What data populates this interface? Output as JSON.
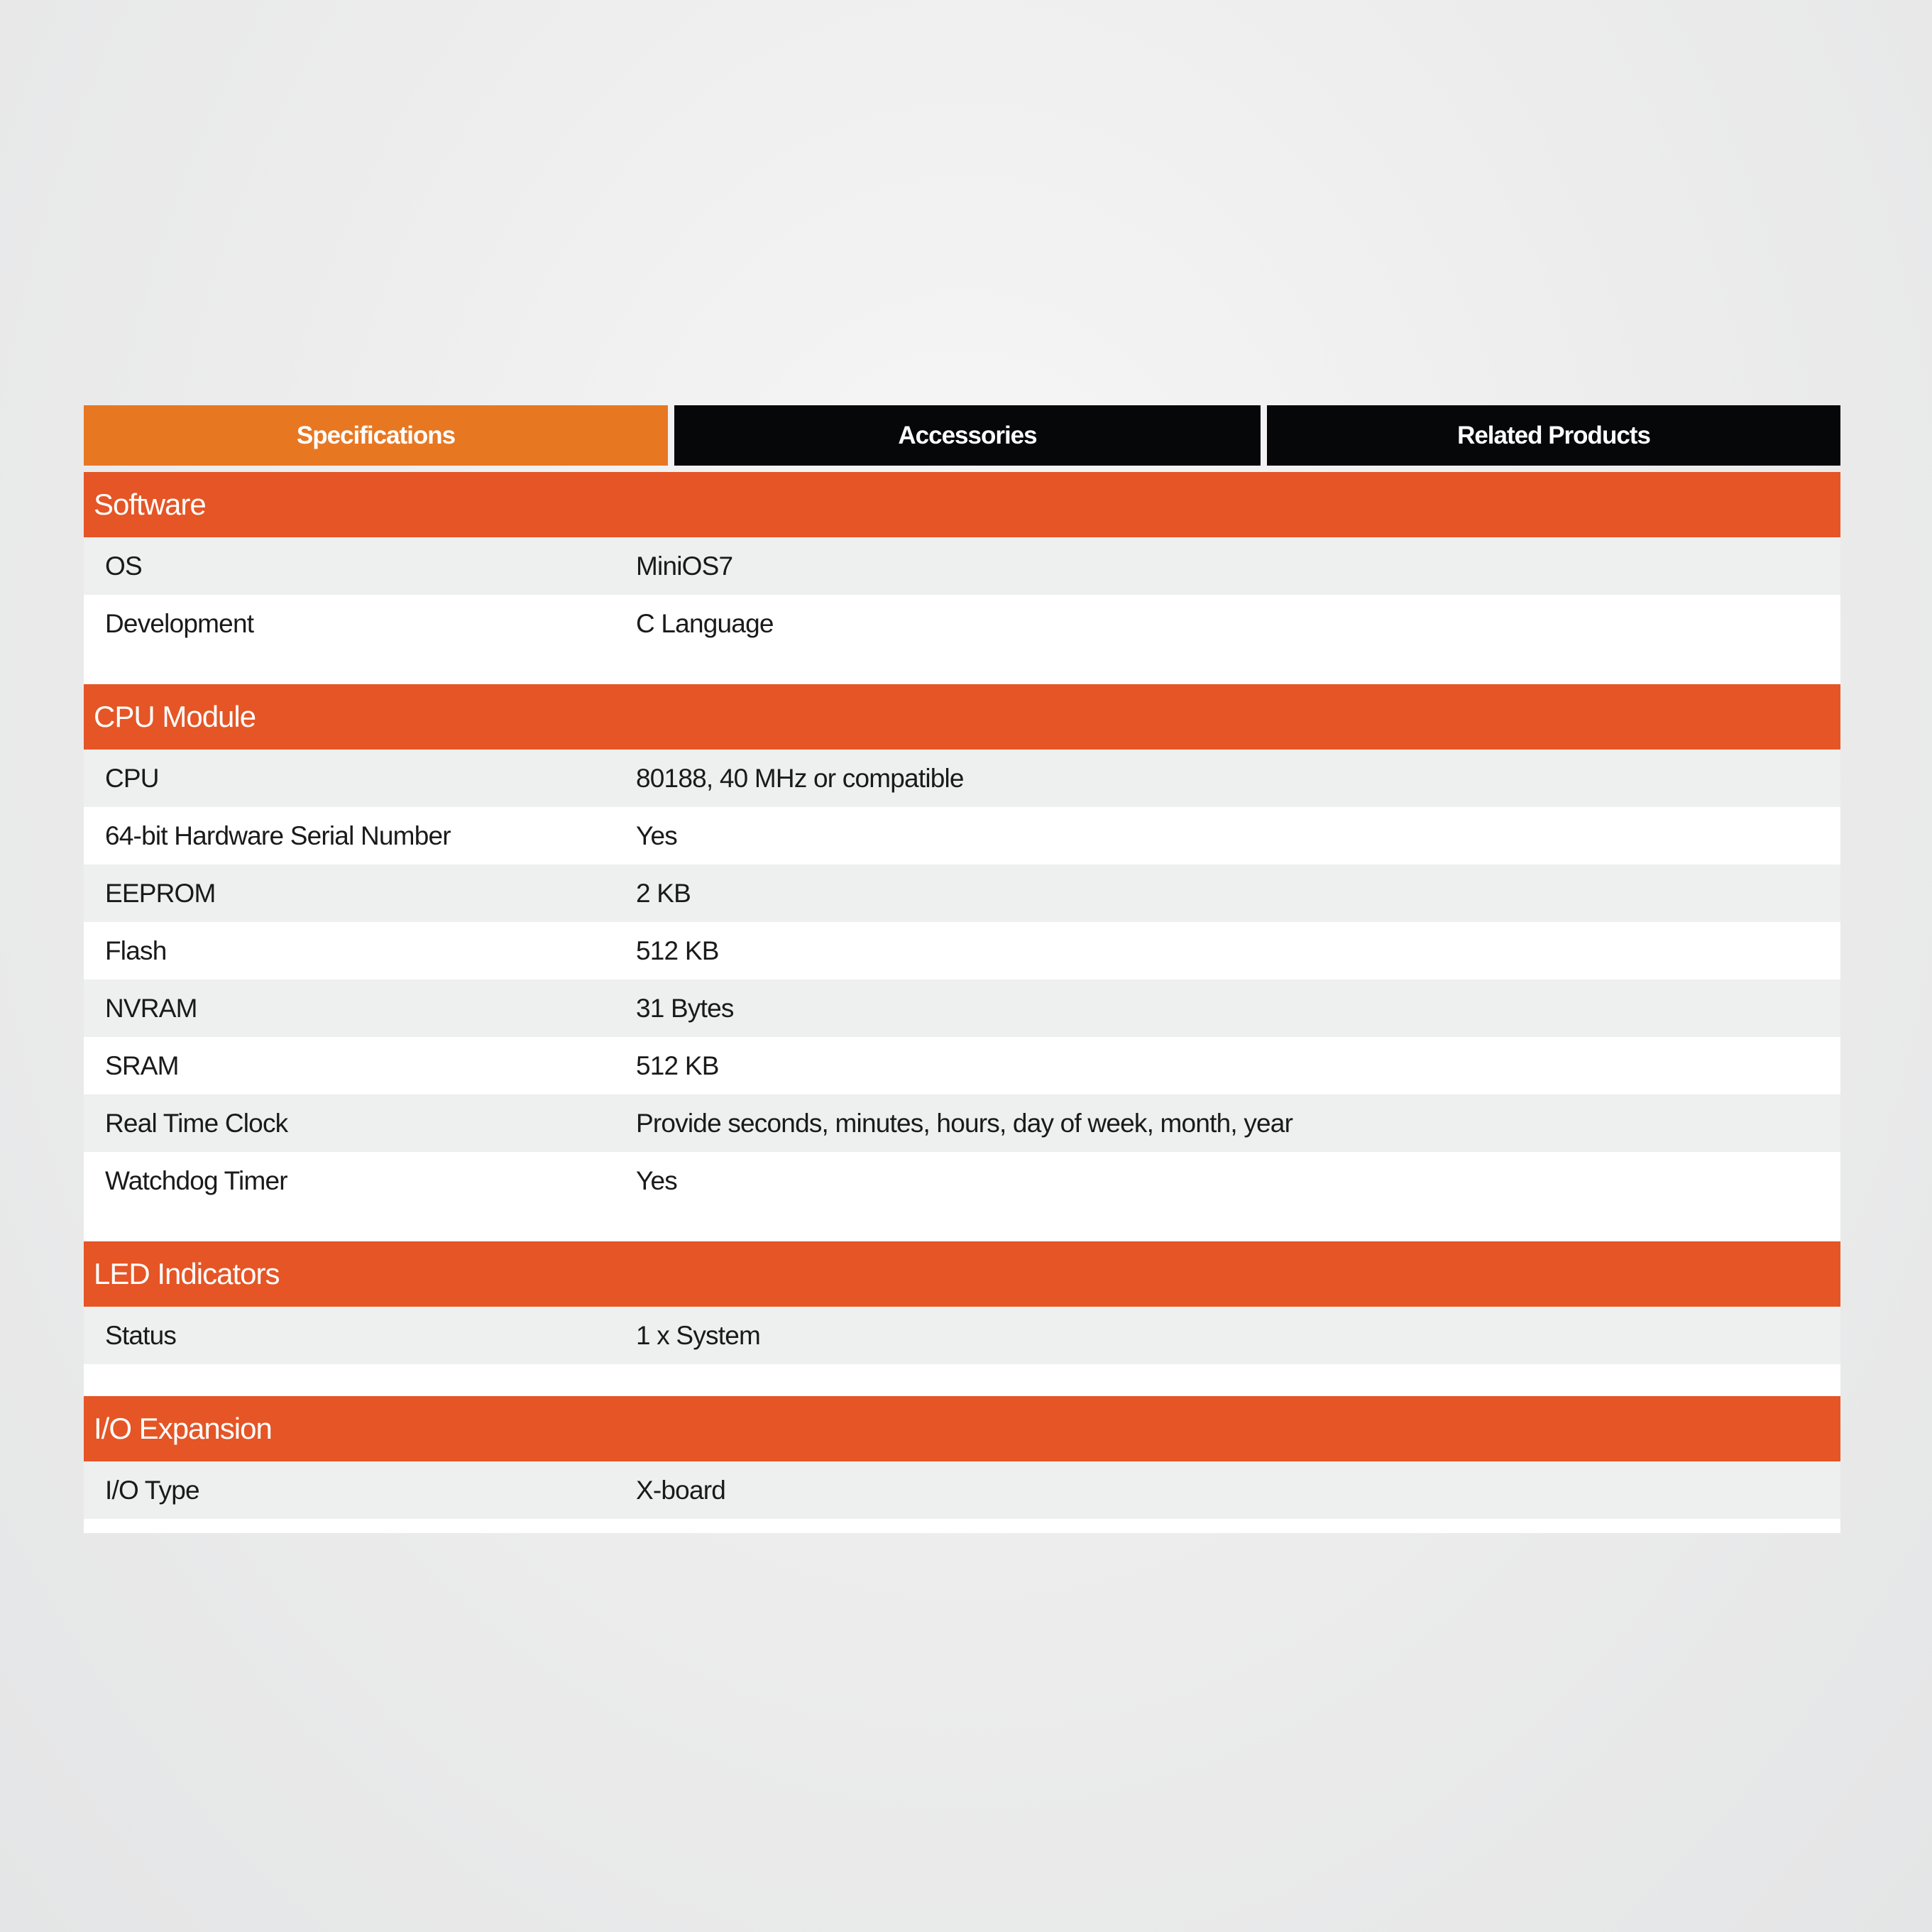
{
  "tabs": [
    {
      "label": "Specifications",
      "active": true
    },
    {
      "label": "Accessories",
      "active": false
    },
    {
      "label": "Related Products",
      "active": false
    }
  ],
  "colors": {
    "active_tab": "#E87722",
    "inactive_tab": "#050708",
    "section_header": "#E55525",
    "stripe": "#EEEFEF"
  },
  "sections": [
    {
      "title": "Software",
      "rows": [
        {
          "label": "OS",
          "value": "MiniOS7"
        },
        {
          "label": "Development",
          "value": "C Language"
        }
      ]
    },
    {
      "title": "CPU Module",
      "rows": [
        {
          "label": "CPU",
          "value": "80188, 40 MHz or compatible"
        },
        {
          "label": "64-bit Hardware Serial Number",
          "value": "Yes"
        },
        {
          "label": "EEPROM",
          "value": "2 KB"
        },
        {
          "label": "Flash",
          "value": "512 KB"
        },
        {
          "label": "NVRAM",
          "value": "31 Bytes"
        },
        {
          "label": "SRAM",
          "value": "512 KB"
        },
        {
          "label": "Real Time Clock",
          "value": "Provide seconds, minutes, hours, day of week, month, year"
        },
        {
          "label": "Watchdog Timer",
          "value": "Yes"
        }
      ]
    },
    {
      "title": "LED Indicators",
      "rows": [
        {
          "label": "Status",
          "value": "1 x System"
        }
      ]
    },
    {
      "title": "I/O Expansion",
      "rows": [
        {
          "label": "I/O Type",
          "value": "X-board"
        }
      ]
    }
  ]
}
